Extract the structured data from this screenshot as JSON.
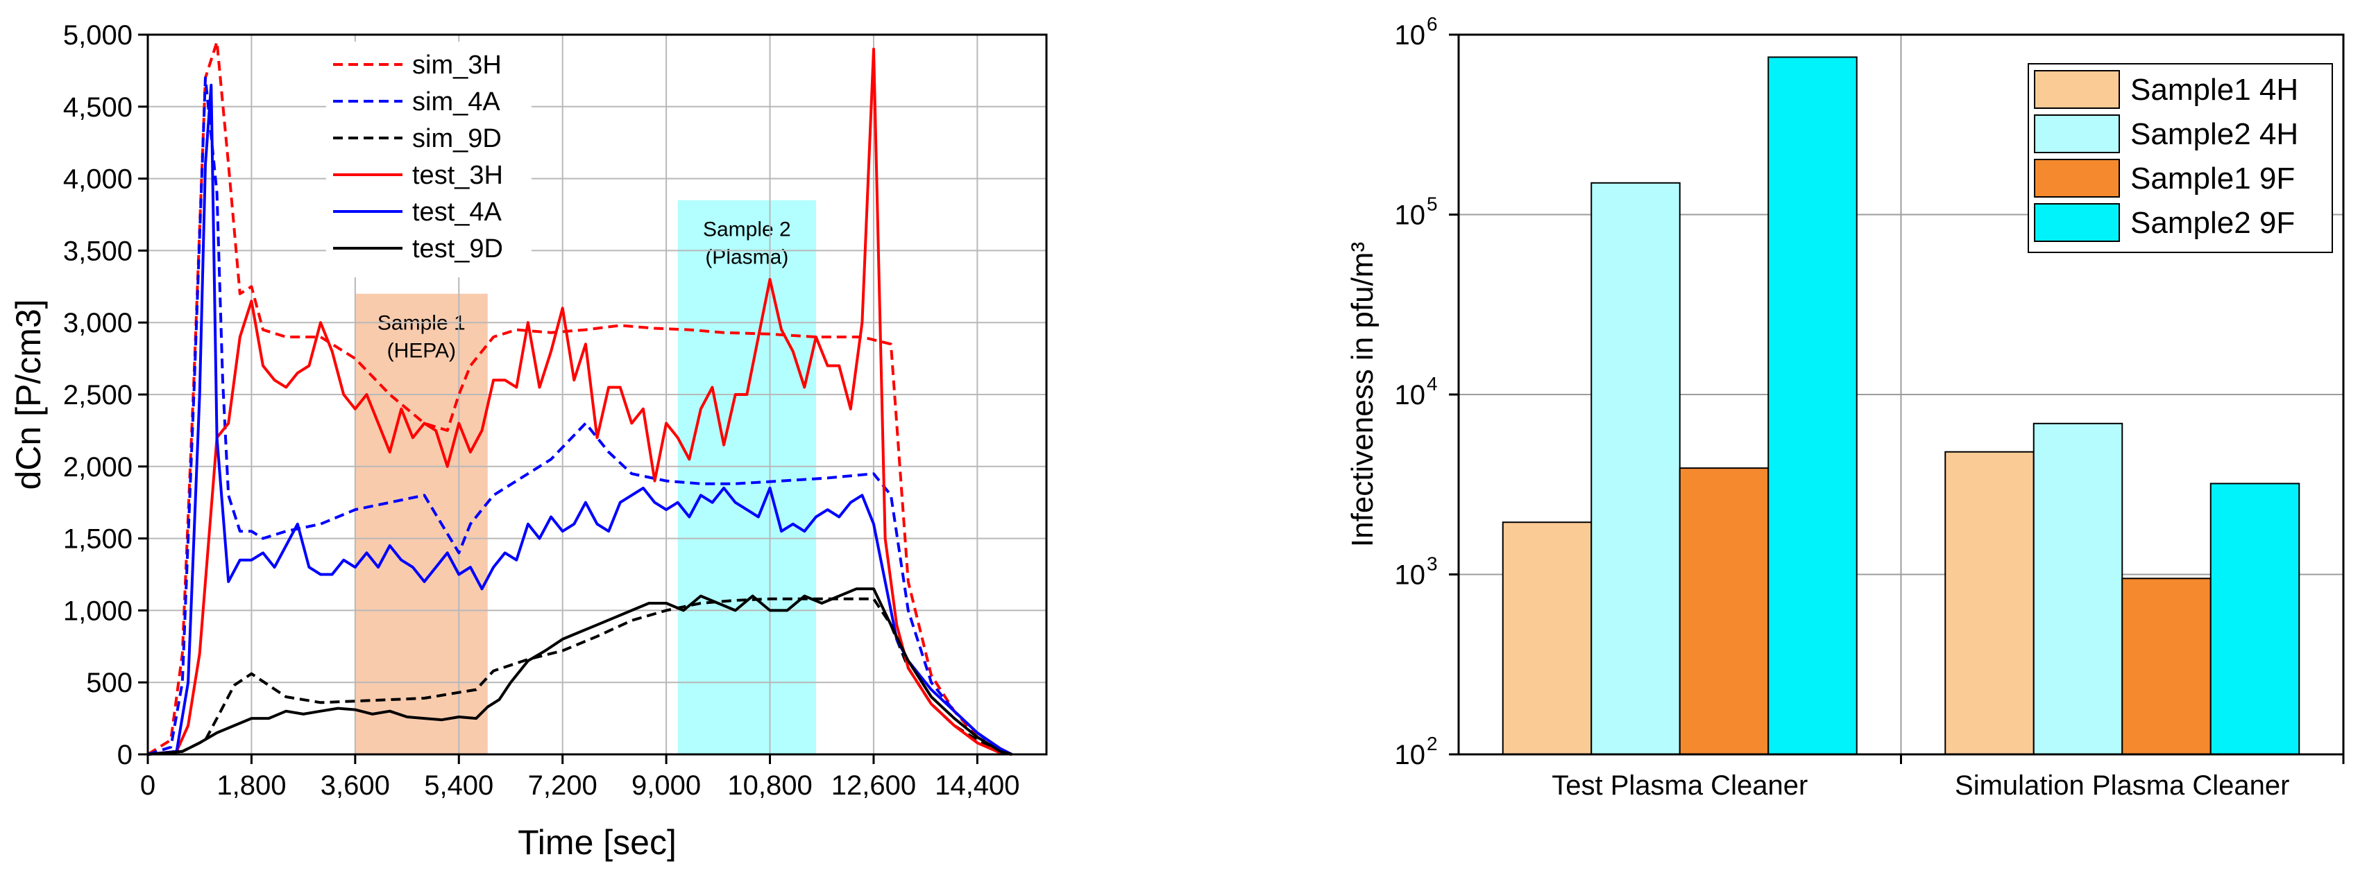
{
  "chart_data": [
    {
      "type": "line",
      "title": "",
      "xlabel": "Time [sec]",
      "ylabel": "dCn [P/cm3]",
      "xlim": [
        0,
        15600
      ],
      "ylim": [
        0,
        5000
      ],
      "xticks": [
        0,
        1800,
        3600,
        5400,
        7200,
        9000,
        10800,
        12600,
        14400
      ],
      "xtick_labels": [
        "0",
        "1,800",
        "3,600",
        "5,400",
        "7,200",
        "9,000",
        "10,800",
        "12,600",
        "14,400"
      ],
      "yticks": [
        0,
        500,
        1000,
        1500,
        2000,
        2500,
        3000,
        3500,
        4000,
        4500,
        5000
      ],
      "ytick_labels": [
        "0",
        "500",
        "1,000",
        "1,500",
        "2,000",
        "2,500",
        "3,000",
        "3,500",
        "4,000",
        "4,500",
        "5,000"
      ],
      "grid": true,
      "legend_position": "top-left",
      "regions": [
        {
          "name": "Sample 1",
          "sublabel": "(HEPA)",
          "x0": 3600,
          "x1": 5900,
          "y_top": 3200,
          "color": "#f8cbad"
        },
        {
          "name": "Sample 2",
          "sublabel": "(Plasma)",
          "x0": 9200,
          "x1": 11600,
          "y_top": 3850,
          "color": "#b3ffff"
        }
      ],
      "series": [
        {
          "name": "sim_3H",
          "color": "#ff0000",
          "dash": "dashed",
          "x": [
            0,
            400,
            600,
            800,
            1000,
            1200,
            1400,
            1600,
            1800,
            2000,
            2400,
            3000,
            3600,
            4200,
            4800,
            5200,
            5400,
            5600,
            6000,
            6400,
            7000,
            7600,
            8200,
            8800,
            9400,
            10000,
            10800,
            11600,
            12400,
            12900,
            13200,
            13600,
            14000,
            14400,
            14800,
            15000
          ],
          "y": [
            0,
            100,
            700,
            2600,
            4700,
            4950,
            4100,
            3200,
            3250,
            2950,
            2900,
            2900,
            2750,
            2500,
            2300,
            2250,
            2500,
            2700,
            2900,
            2950,
            2930,
            2950,
            2980,
            2960,
            2950,
            2930,
            2920,
            2900,
            2900,
            2850,
            1200,
            550,
            300,
            120,
            20,
            0
          ]
        },
        {
          "name": "sim_4A",
          "color": "#0000ff",
          "dash": "dashed",
          "x": [
            0,
            400,
            600,
            800,
            1000,
            1200,
            1300,
            1400,
            1600,
            1800,
            2000,
            2400,
            3000,
            3600,
            4200,
            4800,
            5400,
            5600,
            6000,
            6400,
            7000,
            7600,
            8000,
            8400,
            9000,
            9600,
            10200,
            11000,
            11800,
            12600,
            12900,
            13200,
            13600,
            14000,
            14400,
            14800,
            15000
          ],
          "y": [
            0,
            50,
            500,
            2500,
            4700,
            3900,
            2600,
            1800,
            1550,
            1550,
            1500,
            1550,
            1600,
            1700,
            1750,
            1800,
            1400,
            1600,
            1800,
            1900,
            2050,
            2300,
            2100,
            1950,
            1900,
            1880,
            1880,
            1900,
            1920,
            1950,
            1800,
            1000,
            500,
            300,
            150,
            30,
            0
          ]
        },
        {
          "name": "sim_9D",
          "color": "#000000",
          "dash": "dashed",
          "x": [
            0,
            600,
            1000,
            1200,
            1500,
            1800,
            2100,
            2400,
            3000,
            3600,
            4200,
            4800,
            5400,
            5700,
            6000,
            6600,
            7200,
            7800,
            8400,
            9000,
            9600,
            10200,
            10800,
            11400,
            12000,
            12600,
            12900,
            13200,
            13600,
            14000,
            14400,
            14800,
            15000
          ],
          "y": [
            0,
            20,
            100,
            250,
            480,
            560,
            480,
            400,
            360,
            370,
            380,
            390,
            430,
            450,
            580,
            660,
            720,
            820,
            930,
            1000,
            1050,
            1070,
            1080,
            1080,
            1080,
            1080,
            900,
            600,
            350,
            200,
            100,
            20,
            0
          ]
        },
        {
          "name": "test_3H",
          "color": "#ff0000",
          "dash": "solid",
          "x": [
            0,
            500,
            700,
            900,
            1100,
            1200,
            1400,
            1600,
            1800,
            2000,
            2200,
            2400,
            2600,
            2800,
            3000,
            3200,
            3400,
            3600,
            3800,
            4000,
            4200,
            4400,
            4600,
            4800,
            5000,
            5200,
            5400,
            5600,
            5800,
            6000,
            6200,
            6400,
            6600,
            6800,
            7000,
            7200,
            7400,
            7600,
            7800,
            8000,
            8200,
            8400,
            8600,
            8800,
            9000,
            9200,
            9400,
            9600,
            9800,
            10000,
            10200,
            10400,
            10600,
            10800,
            11000,
            11200,
            11400,
            11600,
            11800,
            12000,
            12200,
            12400,
            12600,
            12800,
            13000,
            13200,
            13600,
            14000,
            14400,
            14800,
            15000
          ],
          "y": [
            0,
            20,
            200,
            700,
            1700,
            2200,
            2300,
            2900,
            3150,
            2700,
            2600,
            2550,
            2650,
            2700,
            3000,
            2800,
            2500,
            2400,
            2500,
            2300,
            2100,
            2400,
            2200,
            2300,
            2250,
            2000,
            2300,
            2100,
            2250,
            2600,
            2600,
            2550,
            3000,
            2550,
            2800,
            3100,
            2600,
            2850,
            2200,
            2550,
            2550,
            2300,
            2400,
            1900,
            2300,
            2200,
            2050,
            2400,
            2550,
            2150,
            2500,
            2500,
            2900,
            3300,
            2950,
            2800,
            2550,
            2900,
            2700,
            2700,
            2400,
            3000,
            4900,
            1500,
            900,
            600,
            350,
            200,
            80,
            10,
            0
          ]
        },
        {
          "name": "test_4A",
          "color": "#0000ff",
          "dash": "solid",
          "x": [
            0,
            500,
            700,
            900,
            1000,
            1100,
            1200,
            1400,
            1600,
            1800,
            2000,
            2200,
            2400,
            2600,
            2800,
            3000,
            3200,
            3400,
            3600,
            3800,
            4000,
            4200,
            4400,
            4600,
            4800,
            5000,
            5200,
            5400,
            5600,
            5800,
            6000,
            6200,
            6400,
            6600,
            6800,
            7000,
            7200,
            7400,
            7600,
            7800,
            8000,
            8200,
            8400,
            8600,
            8800,
            9000,
            9200,
            9400,
            9600,
            9800,
            10000,
            10200,
            10400,
            10600,
            10800,
            11000,
            11200,
            11400,
            11600,
            11800,
            12000,
            12200,
            12400,
            12600,
            12800,
            13000,
            13200,
            13600,
            14000,
            14400,
            14800,
            15000
          ],
          "y": [
            0,
            20,
            500,
            2500,
            4100,
            4650,
            2200,
            1200,
            1350,
            1350,
            1400,
            1300,
            1450,
            1600,
            1300,
            1250,
            1250,
            1350,
            1300,
            1400,
            1300,
            1450,
            1350,
            1300,
            1200,
            1300,
            1400,
            1250,
            1300,
            1150,
            1300,
            1400,
            1350,
            1600,
            1500,
            1650,
            1550,
            1600,
            1750,
            1600,
            1550,
            1750,
            1800,
            1850,
            1750,
            1700,
            1750,
            1650,
            1800,
            1750,
            1850,
            1750,
            1700,
            1650,
            1850,
            1550,
            1600,
            1550,
            1650,
            1700,
            1650,
            1750,
            1800,
            1600,
            1200,
            800,
            650,
            450,
            300,
            150,
            40,
            0
          ]
        },
        {
          "name": "test_9D",
          "color": "#000000",
          "dash": "solid",
          "x": [
            0,
            600,
            900,
            1200,
            1500,
            1800,
            2100,
            2400,
            2700,
            3000,
            3300,
            3600,
            3900,
            4200,
            4500,
            4800,
            5100,
            5400,
            5700,
            5900,
            6100,
            6300,
            6600,
            6900,
            7200,
            7500,
            7800,
            8100,
            8400,
            8700,
            9000,
            9300,
            9600,
            9900,
            10200,
            10500,
            10800,
            11100,
            11400,
            11700,
            12000,
            12300,
            12600,
            12900,
            13200,
            13600,
            14000,
            14400,
            14800,
            15000
          ],
          "y": [
            0,
            20,
            80,
            150,
            200,
            250,
            250,
            300,
            280,
            300,
            320,
            310,
            280,
            300,
            260,
            250,
            240,
            260,
            250,
            330,
            380,
            500,
            650,
            720,
            800,
            850,
            900,
            950,
            1000,
            1050,
            1050,
            1000,
            1100,
            1050,
            1000,
            1100,
            1000,
            1000,
            1100,
            1050,
            1100,
            1150,
            1150,
            900,
            650,
            400,
            250,
            120,
            20,
            0
          ]
        }
      ]
    },
    {
      "type": "bar",
      "title": "",
      "xlabel": "",
      "ylabel": "Infectiveness in pfu/m³",
      "yscale": "log",
      "ylim": [
        100,
        1000000
      ],
      "yticks": [
        100,
        1000,
        10000,
        100000,
        1000000
      ],
      "ytick_labels": [
        {
          "base": "10",
          "exp": "2"
        },
        {
          "base": "10",
          "exp": "3"
        },
        {
          "base": "10",
          "exp": "4"
        },
        {
          "base": "10",
          "exp": "5"
        },
        {
          "base": "10",
          "exp": "6"
        }
      ],
      "grid": true,
      "legend_position": "top-right",
      "categories": [
        "Test Plasma Cleaner",
        "Simulation Plasma Cleaner"
      ],
      "series": [
        {
          "name": "Sample1 4H",
          "color": "#fbcb96",
          "values": [
            1950,
            4800
          ]
        },
        {
          "name": "Sample2 4H",
          "color": "#b5fcff",
          "values": [
            150000,
            6900
          ]
        },
        {
          "name": "Sample1 9F",
          "color": "#f5892e",
          "values": [
            3900,
            950
          ]
        },
        {
          "name": "Sample2 9F",
          "color": "#00f2fa",
          "values": [
            750000,
            3200
          ]
        }
      ]
    }
  ]
}
